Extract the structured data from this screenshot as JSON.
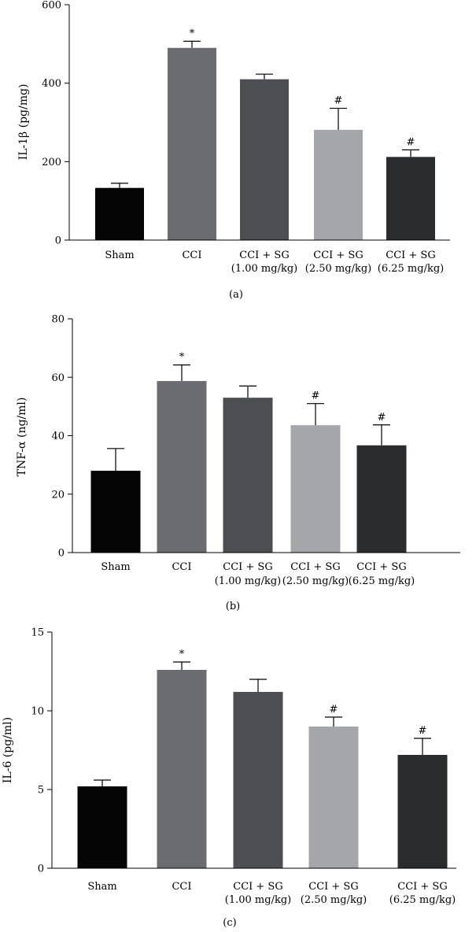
{
  "chart_data": [
    {
      "type": "bar",
      "panel_label": "(a)",
      "ylabel": "IL-1β (pg/mg)",
      "ylim": [
        0,
        600
      ],
      "yticks": [
        0,
        200,
        400,
        600
      ],
      "categories": [
        [
          "Sham"
        ],
        [
          "CCI"
        ],
        [
          "CCI + SG",
          "(1.00 mg/kg)"
        ],
        [
          "CCI + SG",
          "(2.50 mg/kg)"
        ],
        [
          "CCI + SG",
          "(6.25 mg/kg)"
        ]
      ],
      "values": [
        133,
        490,
        410,
        281,
        212
      ],
      "errors": [
        12,
        17,
        13,
        55,
        18
      ],
      "annotations": [
        "",
        "*",
        "",
        "#",
        "#"
      ],
      "colors": [
        "#050505",
        "#6b6c70",
        "#4c4e51",
        "#a4a6a9",
        "#2b2c2e"
      ]
    },
    {
      "type": "bar",
      "panel_label": "(b)",
      "ylabel": "TNF-α (ng/ml)",
      "ylim": [
        0,
        80
      ],
      "yticks": [
        0,
        20,
        40,
        60,
        80
      ],
      "categories": [
        [
          "Sham"
        ],
        [
          "CCI"
        ],
        [
          "CCI + SG",
          "(1.00 mg/kg)"
        ],
        [
          "CCI + SG",
          "(2.50 mg/kg)"
        ],
        [
          "CCI + SG",
          "(6.25 mg/kg)"
        ]
      ],
      "values": [
        28,
        58.7,
        53,
        43.6,
        36.7
      ],
      "errors": [
        7.6,
        5.5,
        4,
        7.4,
        7
      ],
      "annotations": [
        "",
        "*",
        "",
        "#",
        "#"
      ],
      "colors": [
        "#050505",
        "#6b6c70",
        "#4c4e51",
        "#a4a6a9",
        "#2b2c2e"
      ]
    },
    {
      "type": "bar",
      "panel_label": "(c)",
      "ylabel": "IL-6 (pg/ml)",
      "ylim": [
        0,
        15
      ],
      "yticks": [
        0,
        5,
        10,
        15
      ],
      "categories": [
        [
          "Sham"
        ],
        [
          "CCI"
        ],
        [
          "CCI + SG",
          "(1.00 mg/kg)"
        ],
        [
          "CCI + SG",
          "(2.50 mg/kg)"
        ],
        [
          "CCI + SG",
          "(6.25 mg/kg)"
        ]
      ],
      "values": [
        5.2,
        12.6,
        11.2,
        9.0,
        7.2
      ],
      "errors": [
        0.4,
        0.5,
        0.8,
        0.6,
        1.05
      ],
      "annotations": [
        "",
        "*",
        "",
        "#",
        "#"
      ],
      "colors": [
        "#050505",
        "#6b6c70",
        "#4c4e51",
        "#a4a6a9",
        "#2b2c2e"
      ]
    }
  ]
}
